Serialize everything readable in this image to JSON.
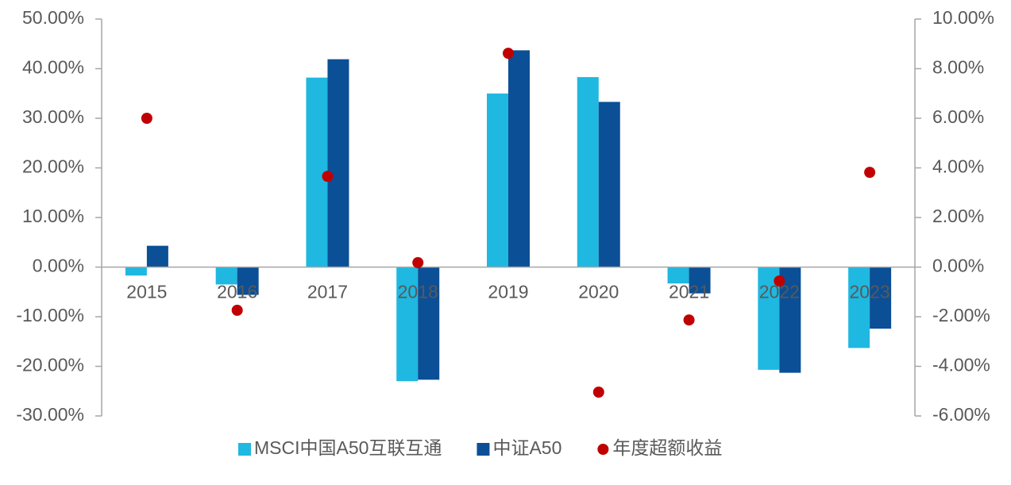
{
  "chart_data": {
    "type": "bar",
    "categories": [
      "2015",
      "2016",
      "2017",
      "2018",
      "2019",
      "2020",
      "2021",
      "2022",
      "2023"
    ],
    "series": [
      {
        "name": "MSCI中国A50互联互通",
        "color": "#1fb8e0",
        "values": [
          -1.7,
          -3.5,
          38.2,
          -23.0,
          35.0,
          38.3,
          -3.3,
          -20.7,
          -16.3
        ]
      },
      {
        "name": "中证A50",
        "color": "#0b4f96",
        "values": [
          4.3,
          -5.6,
          41.9,
          -22.7,
          43.7,
          33.3,
          -5.3,
          -21.3,
          -12.4
        ]
      },
      {
        "name": "年度超额收益",
        "color": "#c00000",
        "axis": "y2",
        "values": [
          6.0,
          -1.74,
          3.66,
          0.18,
          8.62,
          -5.04,
          -2.13,
          -0.56,
          3.82
        ]
      }
    ],
    "ylim": [
      -30,
      50
    ],
    "yticks": [
      {
        "value": -30,
        "label": "-30.00%"
      },
      {
        "value": -20,
        "label": "-20.00%"
      },
      {
        "value": -10,
        "label": "-10.00%"
      },
      {
        "value": 0,
        "label": "0.00%"
      },
      {
        "value": 10,
        "label": "10.00%"
      },
      {
        "value": 20,
        "label": "20.00%"
      },
      {
        "value": 30,
        "label": "30.00%"
      },
      {
        "value": 40,
        "label": "40.00%"
      },
      {
        "value": 50,
        "label": "50.00%"
      }
    ],
    "y2lim": [
      -6,
      10
    ],
    "y2ticks": [
      {
        "value": -6,
        "label": "-6.00%"
      },
      {
        "value": -4,
        "label": "-4.00%"
      },
      {
        "value": -2,
        "label": "-2.00%"
      },
      {
        "value": 0,
        "label": "0.00%"
      },
      {
        "value": 2,
        "label": "2.00%"
      },
      {
        "value": 4,
        "label": "4.00%"
      },
      {
        "value": 6,
        "label": "6.00%"
      },
      {
        "value": 8,
        "label": "8.00%"
      },
      {
        "value": 10,
        "label": "10.00%"
      }
    ],
    "legend": "bottom"
  }
}
